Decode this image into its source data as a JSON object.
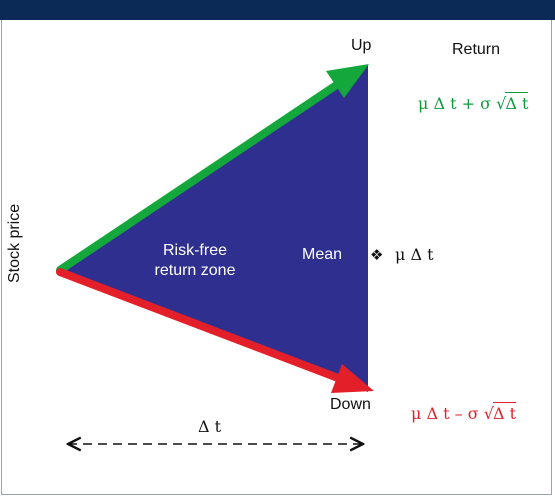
{
  "labels": {
    "up": "Up",
    "down": "Down",
    "return_header": "Return",
    "mean": "Mean",
    "zone_line1": "Risk-free",
    "zone_line2": "return zone",
    "stock_price": "Stock price",
    "delta_t": "Δ t",
    "mean_marker": "❖"
  },
  "formulas": {
    "up_pre": "μ Δ  t + σ ",
    "up_radicand": "Δ  t",
    "down_pre": "μ Δ  t – σ ",
    "down_radicand": "Δ  t",
    "mean": "μ Δ  t",
    "sqrt": "√"
  },
  "colors": {
    "top_band": "#0b2a55",
    "triangle": "#2f2f8f",
    "up_arrow": "#14a83c",
    "down_arrow": "#e3202a",
    "up_formula": "#0f9a3a",
    "down_formula": "#e3202a"
  }
}
